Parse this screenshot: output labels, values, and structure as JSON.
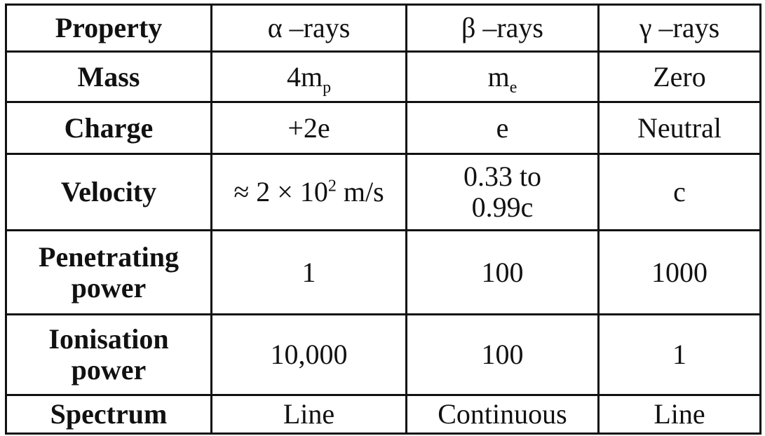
{
  "table": {
    "rows": [
      [
        "Property",
        "α –rays",
        "β –rays",
        "γ –rays"
      ],
      [
        "Mass",
        {
          "text": "4m",
          "sub": "p"
        },
        {
          "text": "m",
          "sub": "e"
        },
        "Zero"
      ],
      [
        "Charge",
        "+2e",
        "e",
        "Neutral"
      ],
      [
        "Velocity",
        {
          "text": "≈ 2 × 10",
          "sup": "2",
          "tail": "m/s"
        },
        {
          "lines": [
            "0.33 to",
            "0.99c"
          ]
        },
        "c"
      ],
      [
        {
          "lines": [
            "Penetrating",
            "power"
          ]
        },
        "1",
        "100",
        "1000"
      ],
      [
        {
          "lines": [
            "Ionisation",
            "power"
          ]
        },
        "10,000",
        "100",
        "1"
      ],
      [
        "Spectrum",
        "Line",
        "Continuous",
        "Line"
      ]
    ]
  }
}
